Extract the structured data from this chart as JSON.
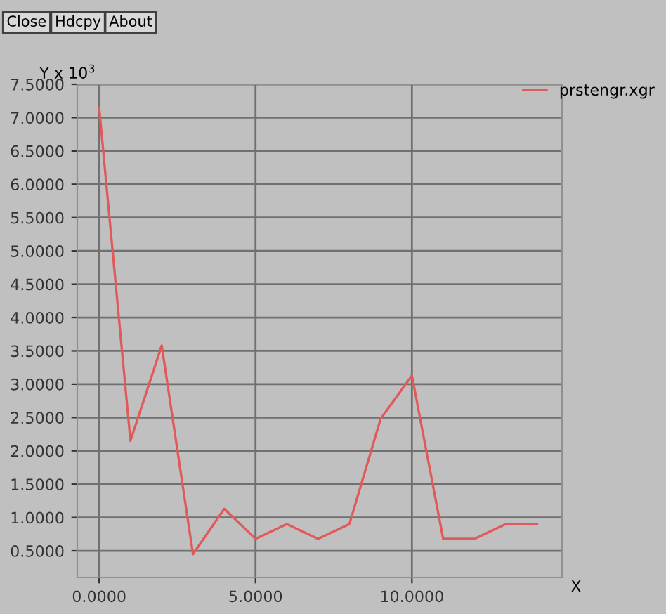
{
  "chart_data": {
    "type": "line",
    "ylabel": "Y x 10$^{3}$",
    "xlabel": "X",
    "annotations": [
      "Close",
      "Hdcpy",
      "About"
    ],
    "x": [
      0,
      1,
      2,
      3,
      4,
      5,
      6,
      7,
      8,
      9,
      10,
      11,
      12,
      13,
      14
    ],
    "series": [
      {
        "name": "prstengr.xgr",
        "color": "#e05a5a",
        "values": [
          7.15,
          2.15,
          3.58,
          0.45,
          1.13,
          0.68,
          0.9,
          0.68,
          0.9,
          2.48,
          3.13,
          0.68,
          0.68,
          0.9,
          0.9
        ]
      }
    ],
    "xlim": [
      -0.7,
      14.8
    ],
    "ylim": [
      0.1,
      7.5
    ],
    "xticks": [
      {
        "value": 0,
        "label": "0.0000"
      },
      {
        "value": 5,
        "label": "5.0000"
      },
      {
        "value": 10,
        "label": "10.0000"
      }
    ],
    "yticks": [
      {
        "value": 0.5,
        "label": "0.5000"
      },
      {
        "value": 1,
        "label": "1.0000"
      },
      {
        "value": 1.5,
        "label": "1.5000"
      },
      {
        "value": 2,
        "label": "2.0000"
      },
      {
        "value": 2.5,
        "label": "2.5000"
      },
      {
        "value": 3,
        "label": "3.0000"
      },
      {
        "value": 3.5,
        "label": "3.5000"
      },
      {
        "value": 4,
        "label": "4.0000"
      },
      {
        "value": 4.5,
        "label": "4.5000"
      },
      {
        "value": 5,
        "label": "5.0000"
      },
      {
        "value": 5.5,
        "label": "5.5000"
      },
      {
        "value": 6,
        "label": "6.0000"
      },
      {
        "value": 6.5,
        "label": "6.5000"
      },
      {
        "value": 7,
        "label": "7.0000"
      },
      {
        "value": 7.5,
        "label": "7.5000"
      }
    ],
    "grid": true,
    "legend": "top right",
    "marker": "none",
    "line_style": "solid"
  }
}
